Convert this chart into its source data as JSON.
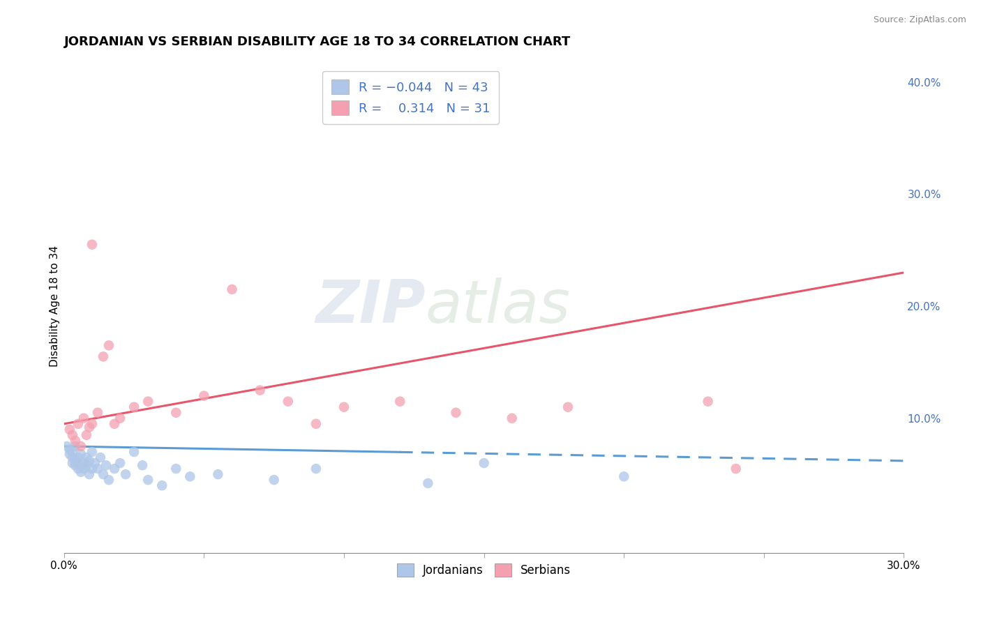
{
  "title": "JORDANIAN VS SERBIAN DISABILITY AGE 18 TO 34 CORRELATION CHART",
  "source_text": "Source: ZipAtlas.com",
  "ylabel": "Disability Age 18 to 34",
  "xlabel": "",
  "xlim": [
    0.0,
    0.3
  ],
  "ylim": [
    -0.02,
    0.42
  ],
  "xticks": [
    0.0,
    0.05,
    0.1,
    0.15,
    0.2,
    0.25,
    0.3
  ],
  "xtick_labels": [
    "0.0%",
    "",
    "",
    "",
    "",
    "",
    "30.0%"
  ],
  "yticks_right": [
    0.1,
    0.2,
    0.3,
    0.4
  ],
  "ytick_labels_right": [
    "10.0%",
    "20.0%",
    "30.0%",
    "40.0%"
  ],
  "grid_color": "#cccccc",
  "background_color": "#ffffff",
  "jordanian_color": "#aec6e8",
  "serbian_color": "#f4a0b0",
  "jordanian_line_color": "#5b9bd5",
  "serbian_line_color": "#e8546a",
  "R_jordanian": -0.044,
  "N_jordanian": 43,
  "R_serbian": 0.314,
  "N_serbian": 31,
  "legend_jordanians": "Jordanians",
  "legend_serbians": "Serbians",
  "watermark": "ZIPatlas",
  "jordanian_scatter_x": [
    0.001,
    0.002,
    0.002,
    0.003,
    0.003,
    0.003,
    0.004,
    0.004,
    0.004,
    0.005,
    0.005,
    0.005,
    0.006,
    0.006,
    0.007,
    0.007,
    0.008,
    0.008,
    0.009,
    0.009,
    0.01,
    0.01,
    0.011,
    0.012,
    0.013,
    0.014,
    0.015,
    0.016,
    0.018,
    0.02,
    0.022,
    0.025,
    0.028,
    0.03,
    0.035,
    0.04,
    0.045,
    0.055,
    0.075,
    0.09,
    0.13,
    0.15,
    0.2
  ],
  "jordanian_scatter_y": [
    0.075,
    0.068,
    0.072,
    0.06,
    0.065,
    0.07,
    0.058,
    0.062,
    0.075,
    0.055,
    0.06,
    0.065,
    0.052,
    0.068,
    0.055,
    0.06,
    0.058,
    0.065,
    0.05,
    0.062,
    0.055,
    0.07,
    0.06,
    0.055,
    0.065,
    0.05,
    0.058,
    0.045,
    0.055,
    0.06,
    0.05,
    0.07,
    0.058,
    0.045,
    0.04,
    0.055,
    0.048,
    0.05,
    0.045,
    0.055,
    0.042,
    0.06,
    0.048
  ],
  "serbian_scatter_x": [
    0.002,
    0.003,
    0.004,
    0.005,
    0.006,
    0.007,
    0.008,
    0.009,
    0.01,
    0.012,
    0.014,
    0.016,
    0.018,
    0.02,
    0.025,
    0.03,
    0.04,
    0.05,
    0.06,
    0.07,
    0.08,
    0.09,
    0.1,
    0.12,
    0.14,
    0.16,
    0.18,
    0.23,
    0.24,
    0.12,
    0.01
  ],
  "serbian_scatter_y": [
    0.09,
    0.085,
    0.08,
    0.095,
    0.075,
    0.1,
    0.085,
    0.092,
    0.095,
    0.105,
    0.155,
    0.165,
    0.095,
    0.1,
    0.11,
    0.115,
    0.105,
    0.12,
    0.215,
    0.125,
    0.115,
    0.095,
    0.11,
    0.115,
    0.105,
    0.1,
    0.11,
    0.115,
    0.055,
    0.38,
    0.255
  ],
  "jordanian_line_x0": 0.0,
  "jordanian_line_y0": 0.075,
  "jordanian_line_x1": 0.3,
  "jordanian_line_y1": 0.062,
  "serbian_line_x0": 0.0,
  "serbian_line_y0": 0.095,
  "serbian_line_x1": 0.3,
  "serbian_line_y1": 0.23,
  "title_fontsize": 13,
  "axis_label_fontsize": 11,
  "tick_fontsize": 11,
  "legend_fontsize": 13
}
